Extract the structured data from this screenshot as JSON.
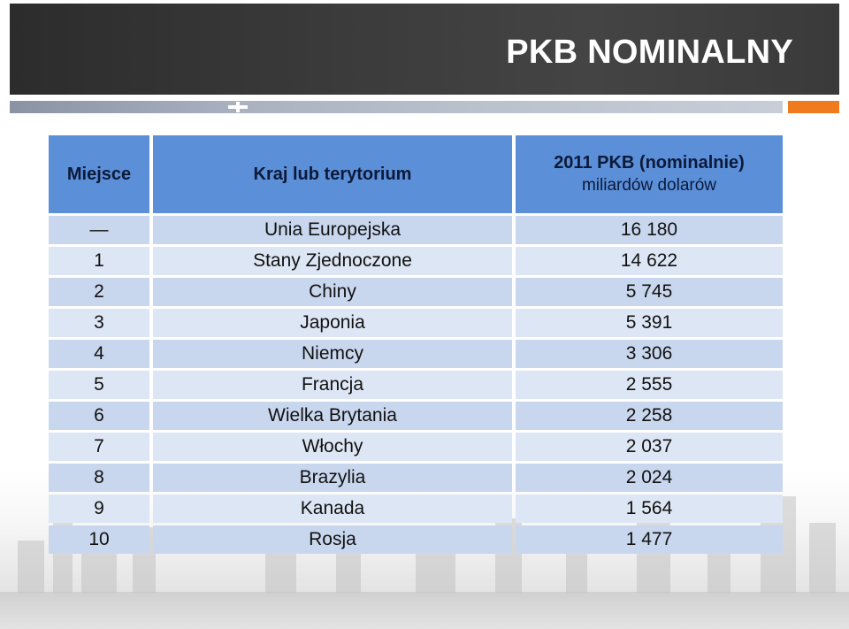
{
  "slide": {
    "title": "PKB NOMINALNY"
  },
  "table": {
    "headers": {
      "rank": "Miejsce",
      "country": "Kraj lub terytorium",
      "gdp_title": "2011 PKB (nominalnie)",
      "gdp_unit": "miliardów dolarów"
    },
    "rows": [
      {
        "rank": "—",
        "country": "Unia Europejska",
        "gdp": "16 180"
      },
      {
        "rank": "1",
        "country": "Stany Zjednoczone",
        "gdp": "14 622"
      },
      {
        "rank": "2",
        "country": "Chiny",
        "gdp": "5 745"
      },
      {
        "rank": "3",
        "country": "Japonia",
        "gdp": "5 391"
      },
      {
        "rank": "4",
        "country": "Niemcy",
        "gdp": "3 306"
      },
      {
        "rank": "5",
        "country": "Francja",
        "gdp": "2 555"
      },
      {
        "rank": "6",
        "country": "Wielka Brytania",
        "gdp": "2 258"
      },
      {
        "rank": "7",
        "country": "Włochy",
        "gdp": "2 037"
      },
      {
        "rank": "8",
        "country": "Brazylia",
        "gdp": "2 024"
      },
      {
        "rank": "9",
        "country": "Kanada",
        "gdp": "1 564"
      },
      {
        "rank": "10",
        "country": "Rosja",
        "gdp": "1 477"
      }
    ]
  },
  "colors": {
    "header_bg": "#5b8fd8",
    "row_bg": "#c9d7ee",
    "title_bar": "#333333",
    "accent": "#f07b1f"
  }
}
